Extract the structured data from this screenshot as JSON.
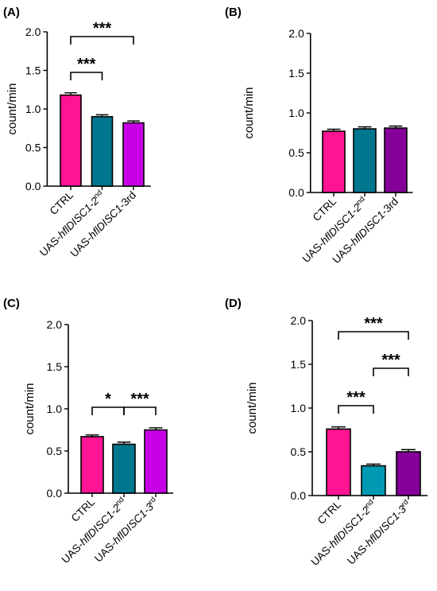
{
  "chart_data": [
    {
      "panel": "(A)",
      "type": "bar",
      "ylabel": "count/min",
      "ylim": [
        0,
        2.0
      ],
      "yticks": [
        "0.0",
        "0.5",
        "1.0",
        "1.5",
        "2.0"
      ],
      "categories": [
        {
          "pre": "CTRL",
          "ital": "",
          "post": "",
          "sup": ""
        },
        {
          "pre": "UAS-",
          "ital": "hflDISC1-2",
          "post": "",
          "sup": "nd"
        },
        {
          "pre": "UAS-",
          "ital": "hflDISC1",
          "post": "-3rd",
          "sup": ""
        }
      ],
      "values": [
        1.18,
        0.9,
        0.82
      ],
      "errors": [
        0.03,
        0.025,
        0.025
      ],
      "colors": [
        "#ff1493",
        "#00778f",
        "#c800e6"
      ],
      "significance": [
        {
          "from": 0,
          "to": 1,
          "label": "***"
        },
        {
          "from": 0,
          "to": 2,
          "label": "***"
        }
      ]
    },
    {
      "panel": "(B)",
      "type": "bar",
      "ylabel": "count/min",
      "ylim": [
        0,
        2.0
      ],
      "yticks": [
        "0.0",
        "0.5",
        "1.0",
        "1.5",
        "2.0"
      ],
      "categories": [
        {
          "pre": "CTRL",
          "ital": "",
          "post": "",
          "sup": ""
        },
        {
          "pre": "UAS-",
          "ital": "hflDISC1-2",
          "post": "",
          "sup": "nd"
        },
        {
          "pre": "UAS-",
          "ital": "hflDISC1",
          "post": "-3rd",
          "sup": ""
        }
      ],
      "values": [
        0.77,
        0.8,
        0.81
      ],
      "errors": [
        0.025,
        0.025,
        0.025
      ],
      "colors": [
        "#ff1493",
        "#00778f",
        "#850099"
      ],
      "significance": []
    },
    {
      "panel": "(C)",
      "type": "bar",
      "ylabel": "count/min",
      "ylim": [
        0,
        2.0
      ],
      "yticks": [
        "0.0",
        "0.5",
        "1.0",
        "1.5",
        "2.0"
      ],
      "categories": [
        {
          "pre": "CTRL",
          "ital": "",
          "post": "",
          "sup": ""
        },
        {
          "pre": "UAS-",
          "ital": "hflDISC1-2",
          "post": "",
          "sup": "nd"
        },
        {
          "pre": "UAS-",
          "ital": "hflDISC1-3",
          "post": "",
          "sup": "rd"
        }
      ],
      "values": [
        0.67,
        0.58,
        0.75
      ],
      "errors": [
        0.02,
        0.025,
        0.025
      ],
      "colors": [
        "#ff1493",
        "#00778f",
        "#c800e6"
      ],
      "significance": [
        {
          "from": 0,
          "to": 1,
          "label": "*"
        },
        {
          "from": 1,
          "to": 2,
          "label": "***"
        }
      ]
    },
    {
      "panel": "(D)",
      "type": "bar",
      "ylabel": "count/min",
      "ylim": [
        0,
        2.0
      ],
      "yticks": [
        "0.0",
        "0.5",
        "1.0",
        "1.5",
        "2.0"
      ],
      "categories": [
        {
          "pre": "CTRL",
          "ital": "",
          "post": "",
          "sup": ""
        },
        {
          "pre": "UAS-",
          "ital": "hflDISC1-2",
          "post": "",
          "sup": "nd"
        },
        {
          "pre": "UAS-",
          "ital": "hflDISC1-3",
          "post": "",
          "sup": "rd"
        }
      ],
      "values": [
        0.76,
        0.34,
        0.5
      ],
      "errors": [
        0.025,
        0.02,
        0.025
      ],
      "colors": [
        "#ff1493",
        "#0099b3",
        "#850099"
      ],
      "significance": [
        {
          "from": 0,
          "to": 1,
          "label": "***"
        },
        {
          "from": 1,
          "to": 2,
          "label": "***"
        },
        {
          "from": 0,
          "to": 2,
          "label": "***"
        }
      ]
    }
  ]
}
